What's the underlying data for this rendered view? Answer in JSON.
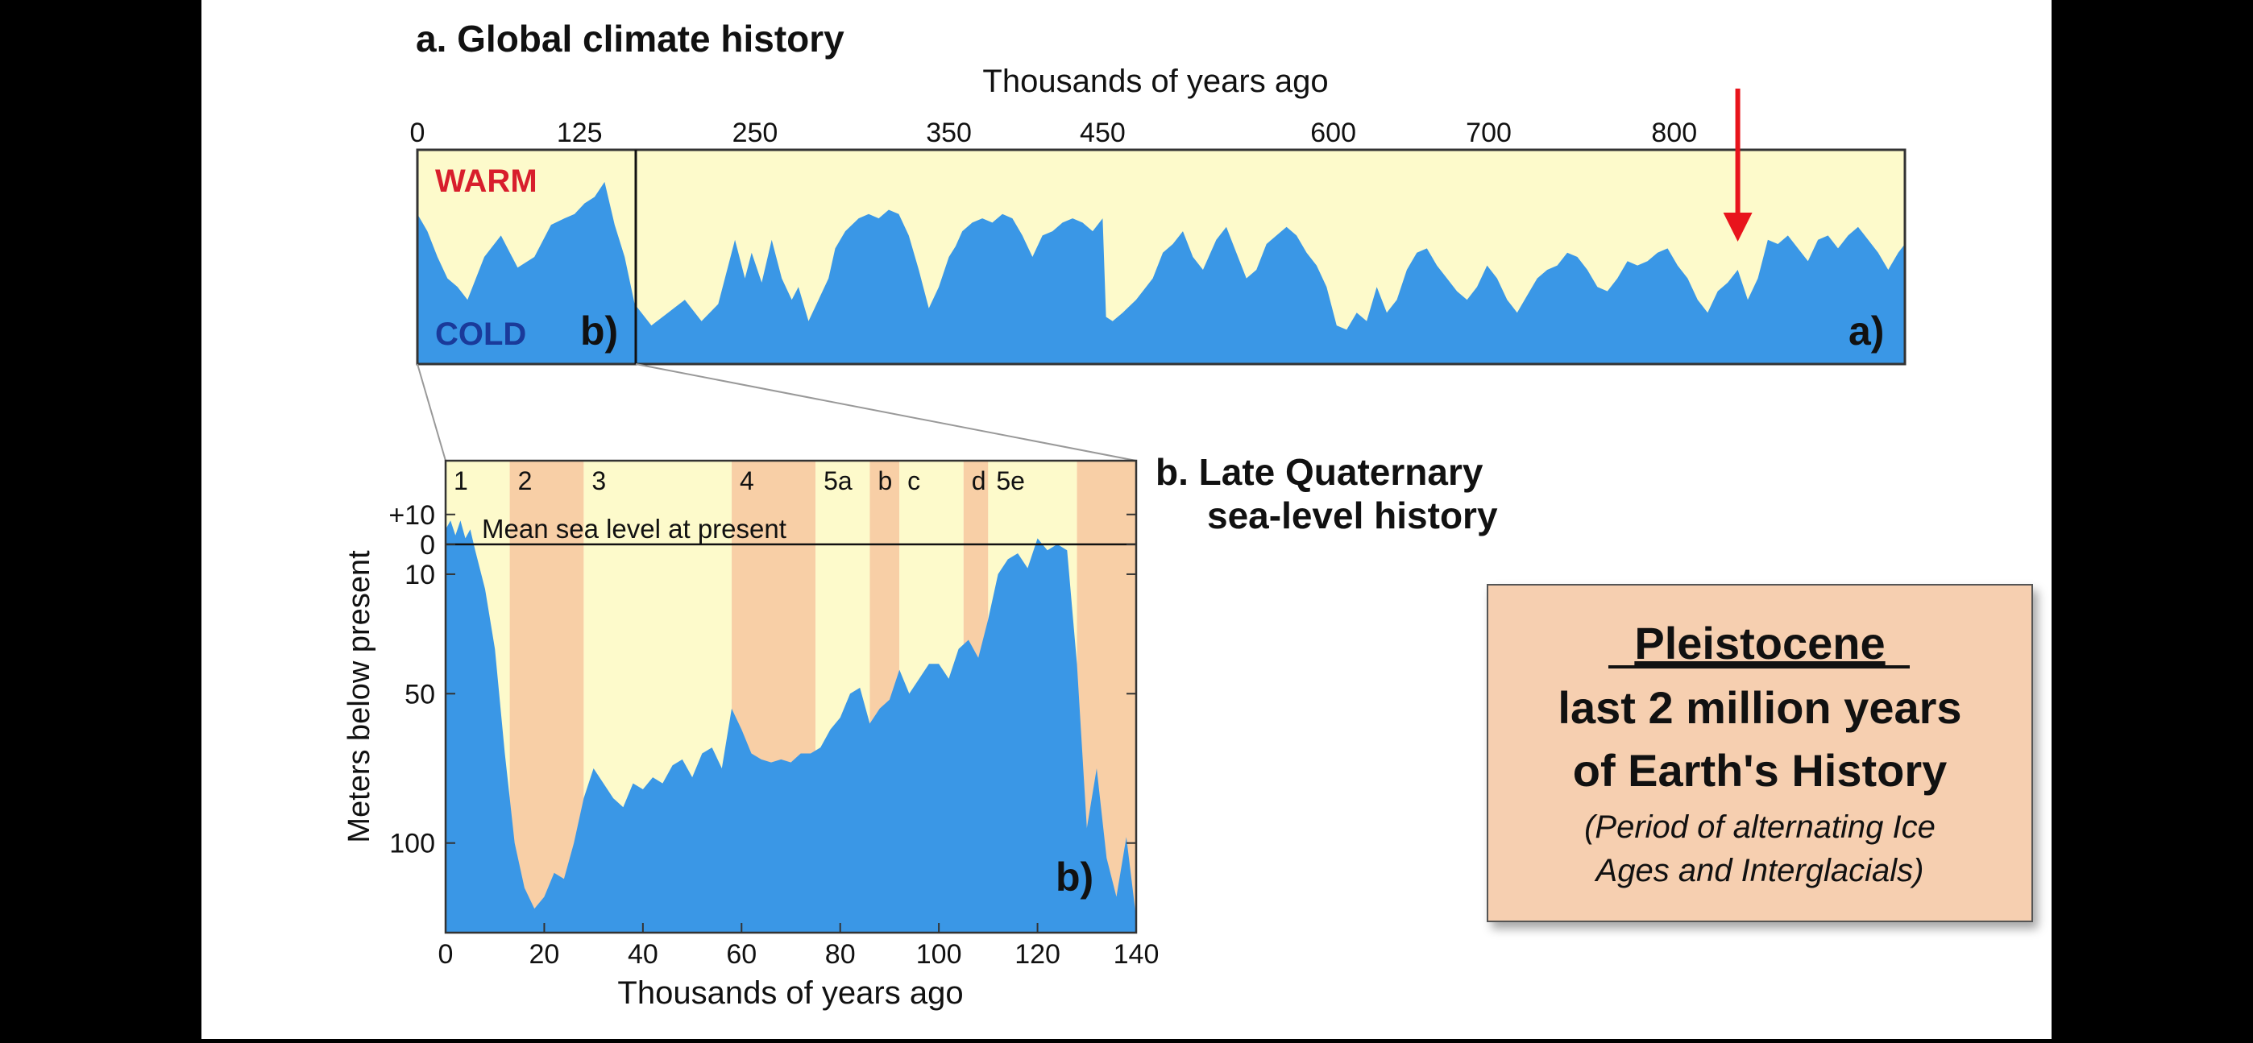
{
  "panel_a": {
    "title": "a. Global climate history",
    "xlabel": "Thousands of years ago",
    "warm_label": "WARM",
    "cold_label": "COLD",
    "zoom_label": "b)",
    "panel_label": "a)",
    "highlight_arrow": "red-arrow-down"
  },
  "panel_b": {
    "title_line1": "b. Late Quaternary",
    "title_line2": "sea-level history",
    "ylabel": "Meters below present",
    "xlabel": "Thousands of years ago",
    "reference_label": "Mean sea level at present",
    "panel_label": "b)"
  },
  "info_box": {
    "title": "Pleistocene",
    "line1": "last 2 million years",
    "line2": "of Earth's History",
    "note_line1": "(Period of alternating Ice",
    "note_line2": "Ages and Interglacials)"
  },
  "colors": {
    "letterbox": "#000000",
    "background": "#ffffff",
    "warm_fill": "#fdfacb",
    "cold_fill": "#3a97e6",
    "stage_warm_band": "#f8cfa6",
    "arrow": "#e8141c",
    "warm_text": "#d81e2c",
    "cold_text": "#1a3a9a",
    "info_box_fill": "#f6cfb0"
  },
  "chart_data": [
    {
      "type": "area",
      "title": "a. Global climate history",
      "xlabel": "Thousands of years ago",
      "ylabel": "",
      "x_ticks": [
        0,
        125,
        250,
        350,
        450,
        600,
        700,
        800
      ],
      "x_tick_positions_kyr": [
        0,
        97,
        202,
        318,
        410,
        548,
        641,
        752
      ],
      "xlim": [
        0,
        890
      ],
      "ylim": [
        0,
        1
      ],
      "y_scale_labels": [
        "COLD",
        "WARM"
      ],
      "highlight_x": 790,
      "series": [
        {
          "name": "",
          "x": [
            0,
            6,
            12,
            18,
            24,
            30,
            40,
            50,
            60,
            70,
            80,
            88,
            94,
            100,
            106,
            112,
            118,
            124,
            130,
            140,
            150,
            160,
            170,
            180,
            186,
            190,
            196,
            200,
            206,
            212,
            218,
            224,
            228,
            234,
            240,
            246,
            250,
            256,
            264,
            270,
            276,
            282,
            288,
            294,
            300,
            306,
            312,
            318,
            322,
            326,
            332,
            338,
            344,
            350,
            356,
            362,
            368,
            374,
            380,
            386,
            392,
            398,
            404,
            410,
            412,
            416,
            422,
            430,
            440,
            446,
            452,
            458,
            464,
            470,
            478,
            484,
            490,
            496,
            502,
            508,
            514,
            520,
            526,
            532,
            538,
            544,
            550,
            556,
            562,
            568,
            574,
            580,
            586,
            592,
            598,
            604,
            610,
            616,
            622,
            628,
            634,
            640,
            646,
            652,
            658,
            664,
            670,
            676,
            682,
            688,
            694,
            700,
            706,
            712,
            718,
            724,
            730,
            736,
            742,
            748,
            754,
            760,
            766,
            772,
            778,
            784,
            790,
            796,
            802,
            808,
            814,
            820,
            826,
            832,
            838,
            844,
            850,
            856,
            862,
            868,
            874,
            880,
            886,
            890
          ],
          "y": [
            0.7,
            0.62,
            0.5,
            0.4,
            0.36,
            0.3,
            0.5,
            0.6,
            0.45,
            0.5,
            0.65,
            0.68,
            0.7,
            0.75,
            0.78,
            0.85,
            0.65,
            0.5,
            0.28,
            0.18,
            0.24,
            0.3,
            0.2,
            0.28,
            0.46,
            0.58,
            0.4,
            0.52,
            0.38,
            0.58,
            0.4,
            0.3,
            0.36,
            0.2,
            0.3,
            0.4,
            0.54,
            0.62,
            0.68,
            0.7,
            0.68,
            0.72,
            0.7,
            0.6,
            0.44,
            0.26,
            0.36,
            0.5,
            0.55,
            0.62,
            0.66,
            0.68,
            0.66,
            0.7,
            0.68,
            0.6,
            0.5,
            0.6,
            0.62,
            0.66,
            0.68,
            0.66,
            0.62,
            0.68,
            0.22,
            0.2,
            0.24,
            0.3,
            0.4,
            0.52,
            0.56,
            0.62,
            0.5,
            0.44,
            0.58,
            0.64,
            0.52,
            0.4,
            0.44,
            0.56,
            0.6,
            0.64,
            0.6,
            0.52,
            0.46,
            0.36,
            0.18,
            0.16,
            0.24,
            0.2,
            0.36,
            0.24,
            0.3,
            0.44,
            0.52,
            0.54,
            0.46,
            0.4,
            0.34,
            0.3,
            0.36,
            0.46,
            0.4,
            0.3,
            0.24,
            0.32,
            0.4,
            0.44,
            0.46,
            0.52,
            0.5,
            0.44,
            0.36,
            0.34,
            0.4,
            0.48,
            0.46,
            0.48,
            0.52,
            0.54,
            0.46,
            0.4,
            0.3,
            0.24,
            0.34,
            0.38,
            0.44,
            0.3,
            0.4,
            0.58,
            0.56,
            0.6,
            0.54,
            0.48,
            0.58,
            0.6,
            0.54,
            0.6,
            0.64,
            0.58,
            0.52,
            0.44,
            0.52,
            0.56
          ]
        }
      ]
    },
    {
      "type": "area",
      "title": "b. Late Quaternary sea-level history",
      "xlabel": "Thousands of years ago",
      "ylabel": "Meters below present",
      "x_ticks": [
        0,
        20,
        40,
        60,
        80,
        100,
        120,
        140
      ],
      "y_ticks": [
        10,
        0,
        -10,
        -50,
        -100
      ],
      "y_tick_labels": [
        "+10",
        "0",
        "10",
        "50",
        "100"
      ],
      "xlim": [
        0,
        140
      ],
      "ylim": [
        -130,
        28
      ],
      "reference_line": 0,
      "reference_label": "Mean sea level at present",
      "stage_bands": [
        {
          "label": "1",
          "x": [
            0,
            13
          ],
          "warm": false
        },
        {
          "label": "2",
          "x": [
            13,
            28
          ],
          "warm": true
        },
        {
          "label": "3",
          "x": [
            28,
            58
          ],
          "warm": false
        },
        {
          "label": "4",
          "x": [
            58,
            75
          ],
          "warm": true
        },
        {
          "label": "5a",
          "x": [
            75,
            86
          ],
          "warm": false
        },
        {
          "label": "b",
          "x": [
            86,
            92
          ],
          "warm": true
        },
        {
          "label": "c",
          "x": [
            92,
            105
          ],
          "warm": false
        },
        {
          "label": "d",
          "x": [
            105,
            110
          ],
          "warm": true
        },
        {
          "label": "5e",
          "x": [
            110,
            128
          ],
          "warm": false
        },
        {
          "label": "",
          "x": [
            128,
            140
          ],
          "warm": true
        }
      ],
      "series": [
        {
          "name": "",
          "x": [
            0,
            1,
            2,
            3,
            4,
            5,
            6,
            8,
            10,
            12,
            14,
            16,
            18,
            20,
            22,
            24,
            26,
            28,
            30,
            32,
            34,
            36,
            38,
            40,
            42,
            44,
            46,
            48,
            50,
            52,
            54,
            56,
            58,
            60,
            62,
            64,
            66,
            68,
            70,
            72,
            74,
            76,
            78,
            80,
            82,
            84,
            86,
            88,
            90,
            92,
            94,
            96,
            98,
            100,
            102,
            104,
            106,
            108,
            110,
            112,
            114,
            116,
            118,
            120,
            122,
            124,
            126,
            128,
            130,
            132,
            134,
            136,
            138,
            140
          ],
          "y": [
            5,
            8,
            3,
            8,
            2,
            5,
            -2,
            -15,
            -35,
            -70,
            -100,
            -115,
            -122,
            -118,
            -110,
            -112,
            -100,
            -85,
            -75,
            -80,
            -85,
            -88,
            -80,
            -82,
            -78,
            -80,
            -74,
            -72,
            -78,
            -70,
            -68,
            -75,
            -55,
            -62,
            -70,
            -72,
            -73,
            -72,
            -73,
            -70,
            -70,
            -68,
            -62,
            -58,
            -50,
            -48,
            -60,
            -55,
            -52,
            -42,
            -50,
            -45,
            -40,
            -40,
            -45,
            -35,
            -32,
            -38,
            -25,
            -10,
            -5,
            -3,
            -8,
            2,
            -2,
            0,
            -2,
            -40,
            -95,
            -75,
            -105,
            -118,
            -98,
            -125
          ]
        }
      ]
    }
  ]
}
